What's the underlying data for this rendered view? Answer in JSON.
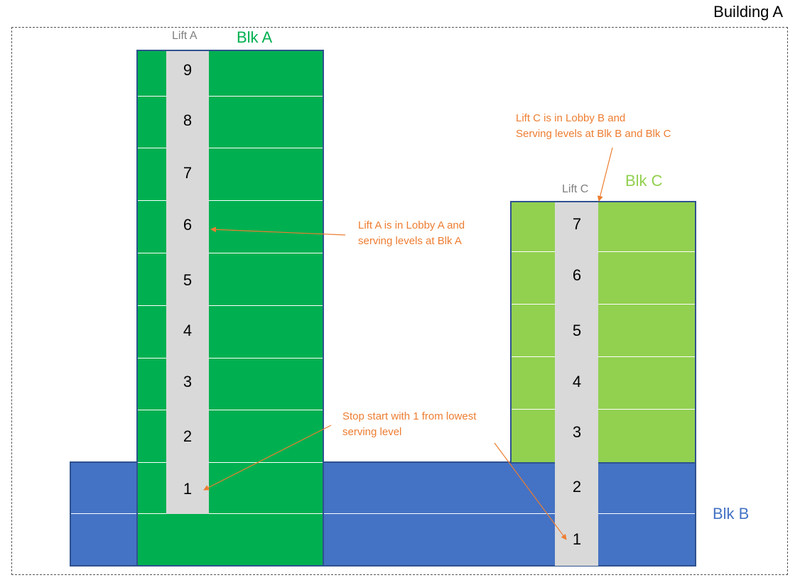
{
  "title": "Building A",
  "blocks": {
    "a": {
      "label": "Blk A",
      "color": "#00B050"
    },
    "b": {
      "label": "Blk B",
      "color": "#4472C4"
    },
    "c": {
      "label": "Blk C",
      "color": "#92D050"
    }
  },
  "lifts": {
    "a": {
      "label": "Lift A",
      "floors": [
        "9",
        "8",
        "7",
        "6",
        "5",
        "4",
        "3",
        "2",
        "1"
      ]
    },
    "c": {
      "label": "Lift C",
      "floors": [
        "7",
        "6",
        "5",
        "4",
        "3",
        "2",
        "1"
      ]
    }
  },
  "notes": {
    "lift_a": [
      "Lift A is in Lobby A and",
      "serving levels at Blk A"
    ],
    "lift_c": [
      "Lift C is in Lobby B and",
      "Serving levels at Blk B and Blk C"
    ],
    "stop": [
      "Stop start with 1 from lowest",
      "serving level"
    ]
  },
  "colors": {
    "note": "#ED7D31",
    "shaft": "#D9D9D9",
    "outline": "#2F528F"
  }
}
